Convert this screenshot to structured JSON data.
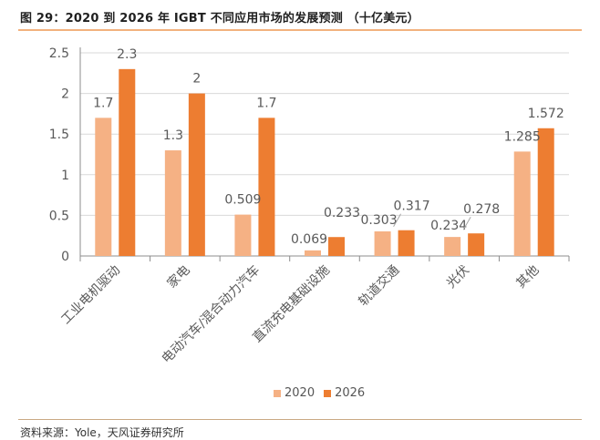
{
  "header": {
    "title": "图 29：2020 到 2026 年 IGBT 不同应用市场的发展预测 （十亿美元）"
  },
  "footer": {
    "source": "资料来源：Yole，天风证券研究所"
  },
  "colors": {
    "series_2020": "#f5b184",
    "series_2026": "#ed7d31",
    "grid": "#d9d9d9",
    "axis_text": "#595959"
  },
  "chart_data": {
    "type": "bar",
    "title": "图 29：2020 到 2026 年 IGBT 不同应用市场的发展预测 （十亿美元）",
    "categories": [
      "工业电机驱动",
      "家电",
      "电动汽车/混合动力汽车",
      "直流充电基础设施",
      "轨道交通",
      "光伏",
      "其他"
    ],
    "series": [
      {
        "name": "2020",
        "values": [
          1.7,
          1.3,
          0.509,
          0.069,
          0.303,
          0.234,
          1.285
        ],
        "labels": [
          "1.7",
          "1.3",
          "0.509",
          "0.069",
          "0.303",
          "0.234",
          "1.285"
        ]
      },
      {
        "name": "2026",
        "values": [
          2.3,
          2,
          1.7,
          0.233,
          0.317,
          0.278,
          1.572
        ],
        "labels": [
          "2.3",
          "2",
          "1.7",
          "0.233",
          "0.317",
          "0.278",
          "1.572"
        ]
      }
    ],
    "yticks": [
      "0",
      "0.5",
      "1",
      "1.5",
      "2",
      "2.5"
    ],
    "ylim": [
      0,
      2.5
    ],
    "grid": true,
    "legend_position": "bottom"
  }
}
